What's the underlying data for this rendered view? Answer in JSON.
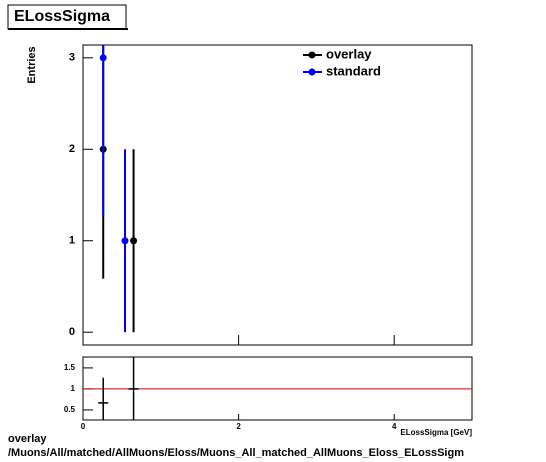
{
  "title": "ELossSigma",
  "footer": [
    "overlay",
    "/Muons/All/matched/AllMuons/Eloss/Muons_All_matched_AllMuons_Eloss_ELossSigm"
  ],
  "chart_data": [
    {
      "type": "errorbar",
      "ylabel": "Entries",
      "xlim": [
        0,
        5
      ],
      "ylim": [
        -0.14,
        3.14
      ],
      "yticks": [
        0,
        1,
        2,
        3
      ],
      "legend": "top-right",
      "series": [
        {
          "name": "overlay",
          "color": "#000000",
          "x": [
            0.26,
            0.65
          ],
          "values": [
            2,
            1
          ],
          "errors": [
            1.414,
            1
          ]
        },
        {
          "name": "standard",
          "color": "#0000ff",
          "x": [
            0.26,
            0.54
          ],
          "values": [
            3,
            1
          ],
          "errors": [
            1.732,
            1
          ]
        }
      ]
    },
    {
      "type": "errorbar",
      "xlabel": "ELossSigma [GeV]",
      "xlim": [
        0,
        5
      ],
      "ylim": [
        0.26,
        1.76
      ],
      "xticks": [
        0,
        2,
        4
      ],
      "yticks": [
        0.5,
        1,
        1.5
      ],
      "reference_line": 1,
      "reference_color": "#cc0000",
      "series": [
        {
          "color": "#000000",
          "x": [
            0.26,
            0.65
          ],
          "values": [
            0.667,
            1
          ],
          "errors": [
            0.6,
            1.4
          ]
        }
      ]
    }
  ]
}
